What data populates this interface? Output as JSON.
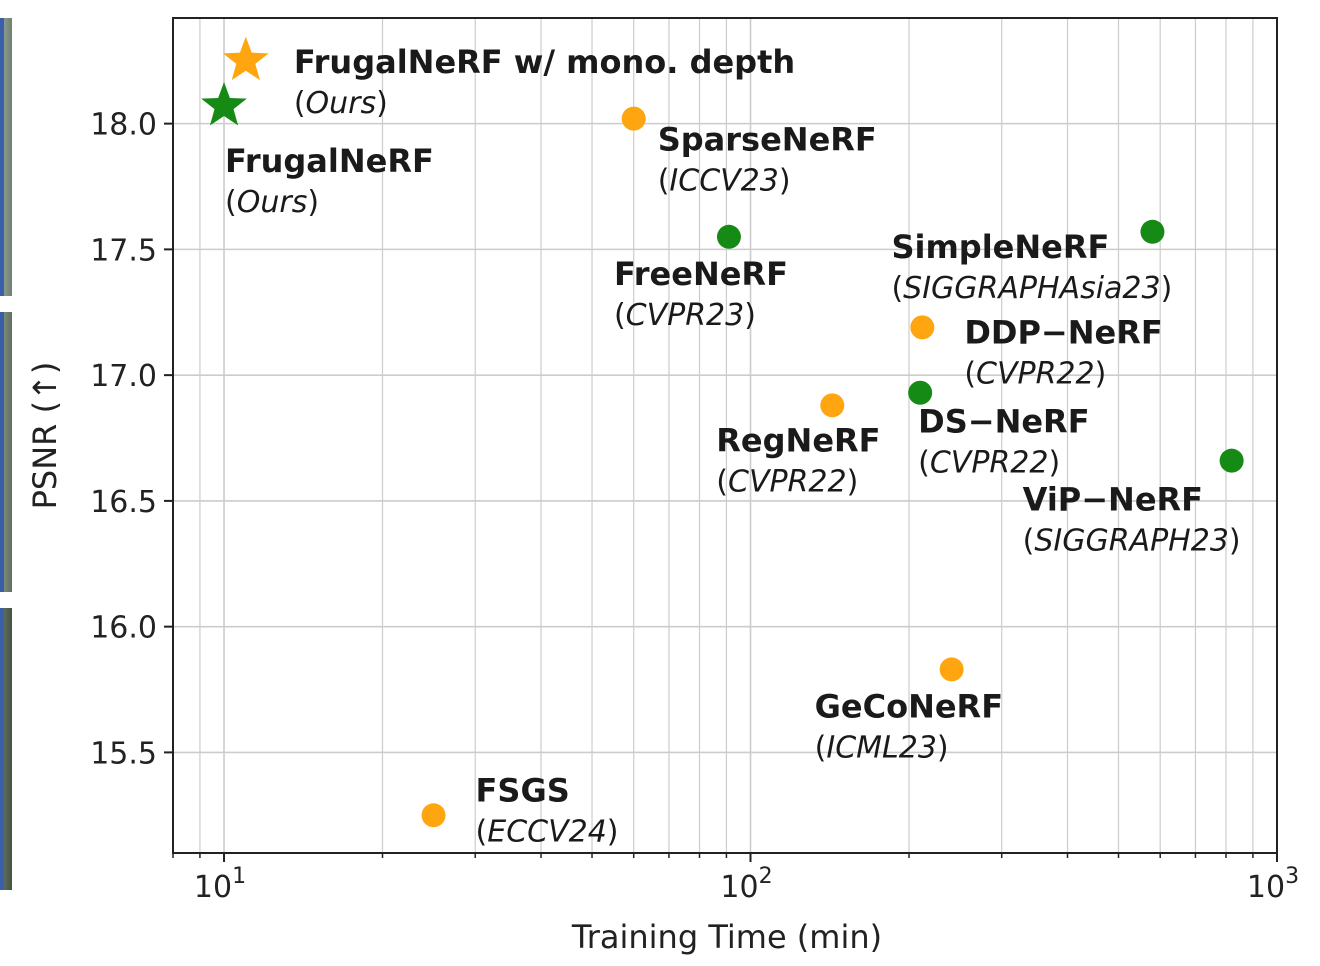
{
  "chart_data": {
    "type": "scatter",
    "title": "",
    "xlabel": "Training Time (min)",
    "ylabel": "PSNR (↑)",
    "xscale": "log",
    "xlim": [
      8,
      1000
    ],
    "ylim": [
      15.1,
      18.42
    ],
    "xticks": [
      {
        "value": 10,
        "base": "10",
        "exp": "1"
      },
      {
        "value": 100,
        "base": "10",
        "exp": "2"
      },
      {
        "value": 1000,
        "base": "10",
        "exp": "3"
      }
    ],
    "yticks": [
      {
        "value": 15.5,
        "label": "15.5"
      },
      {
        "value": 16.0,
        "label": "16.0"
      },
      {
        "value": 16.5,
        "label": "16.5"
      },
      {
        "value": 17.0,
        "label": "17.0"
      },
      {
        "value": 17.5,
        "label": "17.5"
      },
      {
        "value": 18.0,
        "label": "18.0"
      }
    ],
    "grid": true,
    "colors": {
      "orange": "#ffa50f",
      "green": "#158a15",
      "grid": "#cccccc",
      "axis": "#222222"
    },
    "points": [
      {
        "name": "FrugalNeRF w/ mono. depth",
        "venue": "Ours",
        "x": 11,
        "y": 18.25,
        "marker": "star",
        "color": "orange"
      },
      {
        "name": "FrugalNeRF",
        "venue": "Ours",
        "x": 10,
        "y": 18.07,
        "marker": "star",
        "color": "green"
      },
      {
        "name": "SparseNeRF",
        "venue": "ICCV23",
        "x": 60,
        "y": 18.02,
        "marker": "circle",
        "color": "orange"
      },
      {
        "name": "FreeNeRF",
        "venue": "CVPR23",
        "x": 91,
        "y": 17.55,
        "marker": "circle",
        "color": "green"
      },
      {
        "name": "SimpleNeRF",
        "venue": "SIGGRAPHAsia23",
        "x": 580,
        "y": 17.57,
        "marker": "circle",
        "color": "green"
      },
      {
        "name": "DDP−NeRF",
        "venue": "CVPR22",
        "x": 212,
        "y": 17.19,
        "marker": "circle",
        "color": "orange"
      },
      {
        "name": "DS−NeRF",
        "venue": "CVPR22",
        "x": 210,
        "y": 16.93,
        "marker": "circle",
        "color": "green"
      },
      {
        "name": "RegNeRF",
        "venue": "CVPR22",
        "x": 143,
        "y": 16.88,
        "marker": "circle",
        "color": "orange"
      },
      {
        "name": "ViP−NeRF",
        "venue": "SIGGRAPH23",
        "x": 820,
        "y": 16.66,
        "marker": "circle",
        "color": "green"
      },
      {
        "name": "GeCoNeRF",
        "venue": "ICML23",
        "x": 241,
        "y": 15.83,
        "marker": "circle",
        "color": "orange"
      },
      {
        "name": "FSGS",
        "venue": "ECCV24",
        "x": 25,
        "y": 15.25,
        "marker": "circle",
        "color": "orange"
      }
    ]
  }
}
